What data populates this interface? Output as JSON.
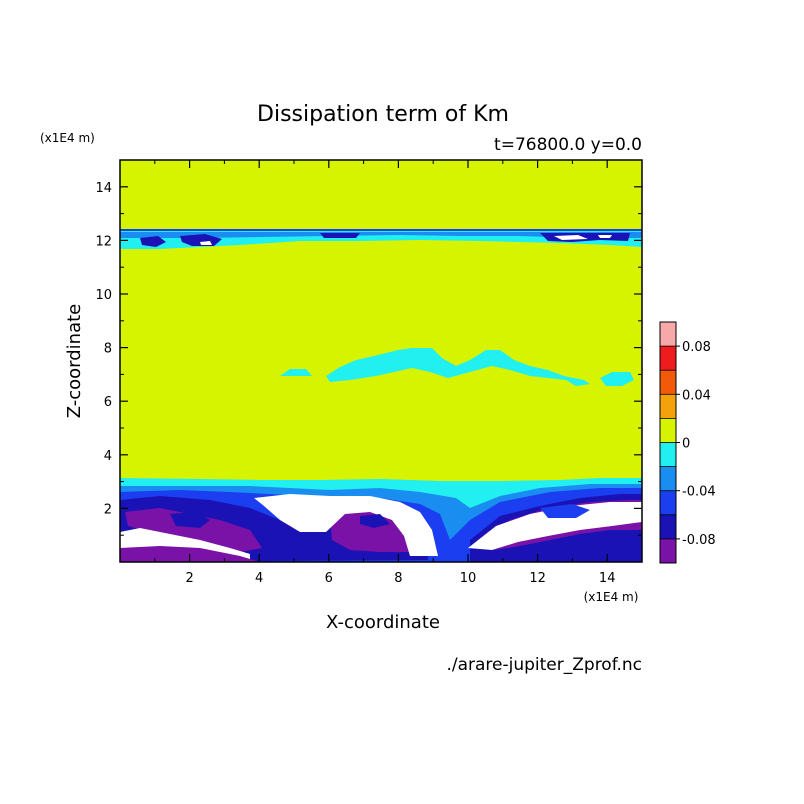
{
  "chart_data": {
    "type": "heatmap",
    "title": "Dissipation term of Km",
    "subtitle": "t=76800.0 y=0.0",
    "xlabel": "X-coordinate",
    "ylabel": "Z-coordinate",
    "x_unit": "(x1E4 m)",
    "y_unit": "(x1E4 m)",
    "xlim": [
      0,
      15
    ],
    "ylim": [
      0,
      15
    ],
    "x_ticks": [
      "2",
      "4",
      "6",
      "8",
      "10",
      "12",
      "14"
    ],
    "y_ticks": [
      "2",
      "4",
      "6",
      "8",
      "10",
      "12",
      "14"
    ],
    "filename": "./arare-jupiter_Zprof.nc",
    "colorbar": {
      "levels": [
        0.1,
        0.08,
        0.06,
        0.04,
        0.02,
        0,
        -0.02,
        -0.04,
        -0.06,
        -0.08,
        -0.1
      ],
      "tick_labels": [
        "0.08",
        "0.04",
        "0",
        "-0.04",
        "-0.08"
      ],
      "colors": [
        "#f7a8a8",
        "#ee1c1c",
        "#f25a0a",
        "#f4a20c",
        "#d6f400",
        "#22f0f0",
        "#1a8ef0",
        "#1a3ef0",
        "#1a12b4",
        "#7a12a8"
      ]
    },
    "regions": [
      {
        "value": 0.0,
        "color": "#d6f400",
        "description": "background"
      },
      {
        "value": -0.01,
        "color": "#22f0f0",
        "description": "band near z=12"
      },
      {
        "value": -0.01,
        "color": "#22f0f0",
        "description": "patches near z=7"
      },
      {
        "value": -0.03,
        "color": "#1a8ef0",
        "description": "lower layer"
      },
      {
        "value": -0.07,
        "color": "#1a12b4",
        "description": "lower layer"
      },
      {
        "value": -0.09,
        "color": "#7a12a8",
        "description": "lower layer"
      },
      {
        "value": null,
        "color": "#ffffff",
        "description": "below -0.1"
      }
    ]
  }
}
